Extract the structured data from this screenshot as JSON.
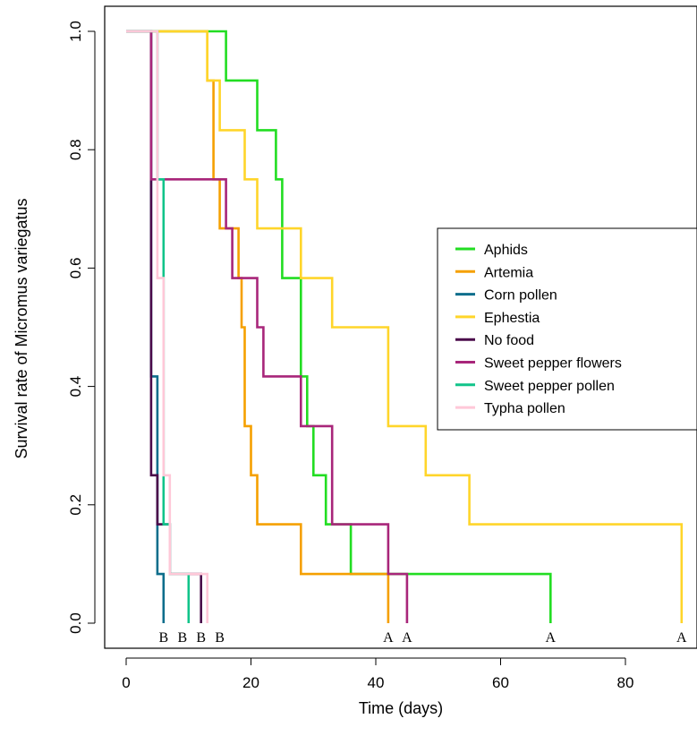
{
  "chart_data": {
    "type": "line",
    "subtype": "step (Kaplan-Meier survival curves)",
    "xlabel": "Time (days)",
    "ylabel": "Survival rate of Micromus variegatus",
    "xlim": [
      0,
      90
    ],
    "ylim": [
      0,
      1
    ],
    "x_ticks": [
      0,
      20,
      40,
      60,
      80
    ],
    "y_ticks": [
      0.0,
      0.2,
      0.4,
      0.6,
      0.8,
      1.0
    ],
    "x_tick_labels": [
      "0",
      "20",
      "40",
      "60",
      "80"
    ],
    "y_tick_labels": [
      "0.0",
      "0.2",
      "0.4",
      "0.6",
      "0.8",
      "1.0"
    ],
    "grid": false,
    "legend_position": "right",
    "series": [
      {
        "name": "Aphids",
        "color": "#22dd22",
        "points": [
          [
            0,
            1
          ],
          [
            16,
            1
          ],
          [
            16,
            0.917
          ],
          [
            21,
            0.917
          ],
          [
            21,
            0.833
          ],
          [
            24,
            0.833
          ],
          [
            24,
            0.75
          ],
          [
            25,
            0.75
          ],
          [
            25,
            0.583
          ],
          [
            28,
            0.583
          ],
          [
            28,
            0.417
          ],
          [
            29,
            0.417
          ],
          [
            29,
            0.333
          ],
          [
            30,
            0.333
          ],
          [
            30,
            0.25
          ],
          [
            32,
            0.25
          ],
          [
            32,
            0.167
          ],
          [
            36,
            0.167
          ],
          [
            36,
            0.083
          ],
          [
            68,
            0.083
          ],
          [
            68,
            0
          ]
        ]
      },
      {
        "name": "Artemia",
        "color": "#f5a000",
        "points": [
          [
            0,
            1
          ],
          [
            13,
            1
          ],
          [
            13,
            0.917
          ],
          [
            14,
            0.917
          ],
          [
            14,
            0.833
          ],
          [
            14,
            0.75
          ],
          [
            15,
            0.75
          ],
          [
            15,
            0.667
          ],
          [
            18,
            0.667
          ],
          [
            18,
            0.583
          ],
          [
            18.5,
            0.583
          ],
          [
            18.5,
            0.5
          ],
          [
            19,
            0.5
          ],
          [
            19,
            0.417
          ],
          [
            19,
            0.333
          ],
          [
            20,
            0.333
          ],
          [
            20,
            0.25
          ],
          [
            21,
            0.25
          ],
          [
            21,
            0.167
          ],
          [
            28,
            0.167
          ],
          [
            28,
            0.083
          ],
          [
            42,
            0.083
          ],
          [
            42,
            0
          ]
        ]
      },
      {
        "name": "Corn pollen",
        "color": "#0e6e8c",
        "points": [
          [
            0,
            1
          ],
          [
            4,
            1
          ],
          [
            4,
            0.417
          ],
          [
            5,
            0.417
          ],
          [
            5,
            0.167
          ],
          [
            5,
            0.083
          ],
          [
            6,
            0.083
          ],
          [
            6,
            0
          ]
        ]
      },
      {
        "name": "Ephestia",
        "color": "#ffd52a",
        "points": [
          [
            0,
            1
          ],
          [
            13,
            1
          ],
          [
            13,
            0.917
          ],
          [
            15,
            0.917
          ],
          [
            15,
            0.833
          ],
          [
            19,
            0.833
          ],
          [
            19,
            0.75
          ],
          [
            21,
            0.75
          ],
          [
            21,
            0.667
          ],
          [
            28,
            0.667
          ],
          [
            28,
            0.583
          ],
          [
            33,
            0.583
          ],
          [
            33,
            0.5
          ],
          [
            42,
            0.5
          ],
          [
            42,
            0.333
          ],
          [
            48,
            0.333
          ],
          [
            48,
            0.25
          ],
          [
            55,
            0.25
          ],
          [
            55,
            0.167
          ],
          [
            89,
            0.167
          ],
          [
            89,
            0
          ]
        ]
      },
      {
        "name": "No food",
        "color": "#4a0a4a",
        "points": [
          [
            0,
            1
          ],
          [
            4,
            1
          ],
          [
            4,
            0.75
          ],
          [
            4,
            0.25
          ],
          [
            5,
            0.25
          ],
          [
            5,
            0.167
          ],
          [
            7,
            0.167
          ],
          [
            7,
            0.083
          ],
          [
            12,
            0.083
          ],
          [
            12,
            0
          ]
        ]
      },
      {
        "name": "Sweet pepper flowers",
        "color": "#a8267a",
        "points": [
          [
            0,
            1
          ],
          [
            4,
            1
          ],
          [
            4,
            0.75
          ],
          [
            16,
            0.75
          ],
          [
            16,
            0.667
          ],
          [
            17,
            0.667
          ],
          [
            17,
            0.583
          ],
          [
            21,
            0.583
          ],
          [
            21,
            0.5
          ],
          [
            22,
            0.5
          ],
          [
            22,
            0.417
          ],
          [
            28,
            0.417
          ],
          [
            28,
            0.333
          ],
          [
            33,
            0.333
          ],
          [
            33,
            0.167
          ],
          [
            42,
            0.167
          ],
          [
            42,
            0.083
          ],
          [
            45,
            0.083
          ],
          [
            45,
            0
          ]
        ]
      },
      {
        "name": "Sweet pepper pollen",
        "color": "#11c48a",
        "points": [
          [
            0,
            1
          ],
          [
            5,
            1
          ],
          [
            5,
            0.75
          ],
          [
            6,
            0.75
          ],
          [
            6,
            0.583
          ],
          [
            6,
            0.167
          ],
          [
            7,
            0.167
          ],
          [
            7,
            0.083
          ],
          [
            10,
            0.083
          ],
          [
            10,
            0
          ]
        ]
      },
      {
        "name": "Typha pollen",
        "color": "#ffc8d8",
        "points": [
          [
            0,
            1
          ],
          [
            5,
            1
          ],
          [
            5,
            0.583
          ],
          [
            6,
            0.583
          ],
          [
            6,
            0.25
          ],
          [
            7,
            0.25
          ],
          [
            7,
            0.083
          ],
          [
            13,
            0.083
          ],
          [
            13,
            0
          ]
        ]
      }
    ],
    "annotations": [
      {
        "text": "B",
        "x": 6
      },
      {
        "text": "B",
        "x": 9
      },
      {
        "text": "B",
        "x": 12
      },
      {
        "text": "B",
        "x": 15
      },
      {
        "text": "A",
        "x": 42
      },
      {
        "text": "A",
        "x": 45
      },
      {
        "text": "A",
        "x": 68
      },
      {
        "text": "A",
        "x": 89
      }
    ]
  }
}
